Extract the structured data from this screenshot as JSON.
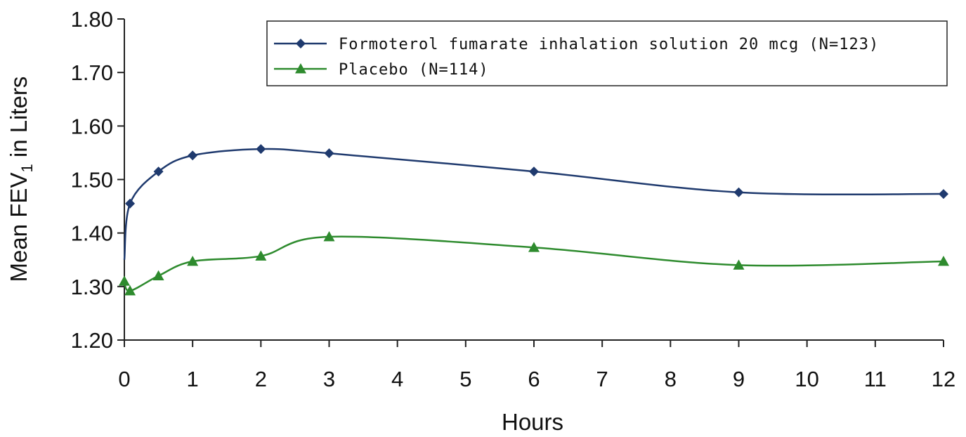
{
  "chart_data": {
    "type": "line",
    "title": "",
    "xlabel": "Hours",
    "ylabel_prefix": "Mean FEV",
    "ylabel_sub": "1",
    "ylabel_suffix": " in Liters",
    "xlim": [
      0,
      12
    ],
    "ylim": [
      1.2,
      1.8
    ],
    "x_ticks": [
      0,
      1,
      2,
      3,
      4,
      5,
      6,
      7,
      8,
      9,
      10,
      11,
      12
    ],
    "y_ticks": [
      "1.20",
      "1.30",
      "1.40",
      "1.50",
      "1.60",
      "1.70",
      "1.80"
    ],
    "grid": false,
    "legend_position": "top-right",
    "series": [
      {
        "name": "Formoterol fumarate inhalation solution 20 mcg (N=123)",
        "color": "#1f3a6e",
        "marker": "diamond",
        "x": [
          0,
          0.083,
          0.5,
          1,
          2,
          3,
          6,
          9,
          12
        ],
        "y": [
          1.35,
          1.455,
          1.515,
          1.545,
          1.557,
          1.549,
          1.515,
          1.476,
          1.473
        ]
      },
      {
        "name": "Placebo (N=114)",
        "color": "#2e8b2e",
        "marker": "triangle",
        "x": [
          0,
          0.083,
          0.5,
          1,
          2,
          3,
          6,
          9,
          12
        ],
        "y": [
          1.31,
          1.292,
          1.32,
          1.347,
          1.357,
          1.393,
          1.373,
          1.34,
          1.347
        ]
      }
    ]
  }
}
